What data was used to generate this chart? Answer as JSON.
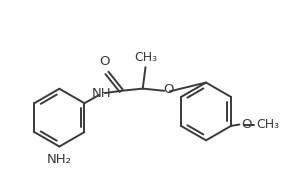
{
  "background_color": "#ffffff",
  "line_color": "#3a3a3a",
  "text_color": "#3a3a3a",
  "fig_width": 2.84,
  "fig_height": 1.94,
  "dpi": 100,
  "xlim": [
    0,
    10
  ],
  "ylim": [
    0,
    7
  ],
  "lw": 1.4,
  "ring_r": 1.05,
  "font_size": 9.5
}
